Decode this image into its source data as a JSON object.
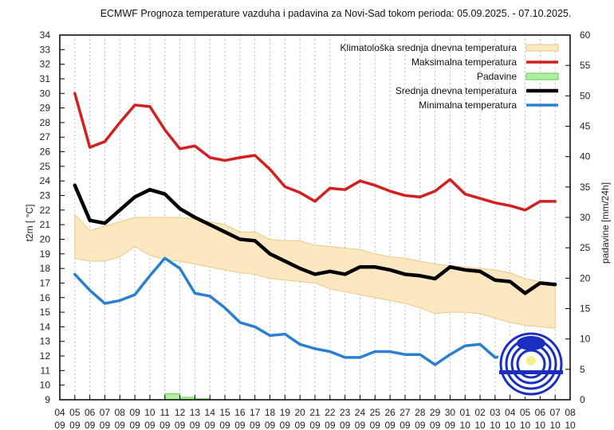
{
  "chart_data": {
    "type": "line",
    "title": "ECMWF Prognoza temperature vazduha i padavina za Novi-Sad tokom perioda: 05.09.2025. - 07.10.2025.",
    "ylabel": "t2m [ °C]",
    "y2label": "padavine [mm/24h]",
    "xlabel": "",
    "ylim": [
      9,
      34
    ],
    "y2lim": [
      0,
      60
    ],
    "y_ticks": [
      9,
      10,
      11,
      12,
      13,
      14,
      15,
      16,
      17,
      18,
      19,
      20,
      21,
      22,
      23,
      24,
      25,
      26,
      27,
      28,
      29,
      30,
      31,
      32,
      33,
      34
    ],
    "y2_ticks": [
      0,
      5,
      10,
      15,
      20,
      25,
      30,
      35,
      40,
      45,
      50,
      55,
      60
    ],
    "grid": "vertical dotted",
    "legend_position": "top-right",
    "x_ticks": [
      {
        "day": "04",
        "month": "09"
      },
      {
        "day": "05",
        "month": "09"
      },
      {
        "day": "06",
        "month": "09"
      },
      {
        "day": "07",
        "month": "09"
      },
      {
        "day": "08",
        "month": "09"
      },
      {
        "day": "09",
        "month": "09"
      },
      {
        "day": "10",
        "month": "09"
      },
      {
        "day": "11",
        "month": "09"
      },
      {
        "day": "12",
        "month": "09"
      },
      {
        "day": "13",
        "month": "09"
      },
      {
        "day": "14",
        "month": "09"
      },
      {
        "day": "15",
        "month": "09"
      },
      {
        "day": "16",
        "month": "09"
      },
      {
        "day": "17",
        "month": "09"
      },
      {
        "day": "18",
        "month": "09"
      },
      {
        "day": "19",
        "month": "09"
      },
      {
        "day": "20",
        "month": "09"
      },
      {
        "day": "21",
        "month": "09"
      },
      {
        "day": "22",
        "month": "09"
      },
      {
        "day": "23",
        "month": "09"
      },
      {
        "day": "24",
        "month": "09"
      },
      {
        "day": "25",
        "month": "09"
      },
      {
        "day": "26",
        "month": "09"
      },
      {
        "day": "27",
        "month": "09"
      },
      {
        "day": "28",
        "month": "09"
      },
      {
        "day": "29",
        "month": "09"
      },
      {
        "day": "30",
        "month": "09"
      },
      {
        "day": "01",
        "month": "10"
      },
      {
        "day": "02",
        "month": "10"
      },
      {
        "day": "03",
        "month": "10"
      },
      {
        "day": "04",
        "month": "10"
      },
      {
        "day": "05",
        "month": "10"
      },
      {
        "day": "06",
        "month": "10"
      },
      {
        "day": "07",
        "month": "10"
      },
      {
        "day": "08",
        "month": "10"
      }
    ],
    "x": [
      "05.09",
      "06.09",
      "07.09",
      "08.09",
      "09.09",
      "10.09",
      "11.09",
      "12.09",
      "13.09",
      "14.09",
      "15.09",
      "16.09",
      "17.09",
      "18.09",
      "19.09",
      "20.09",
      "21.09",
      "22.09",
      "23.09",
      "24.09",
      "25.09",
      "26.09",
      "27.09",
      "28.09",
      "29.09",
      "30.09",
      "01.10",
      "02.10",
      "03.10",
      "04.10",
      "05.10",
      "06.10",
      "07.10"
    ],
    "series": [
      {
        "name": "Klimatološka srednja dnevna temperatura",
        "kind": "band",
        "color": "#fbe7c0",
        "edge": "#e8c98a",
        "upper": [
          21.7,
          20.6,
          20.9,
          21.2,
          21.5,
          21.5,
          21.5,
          21.5,
          21.4,
          21.2,
          21.0,
          20.5,
          20.5,
          20.0,
          19.9,
          19.9,
          19.6,
          19.5,
          19.4,
          19.3,
          19.0,
          18.8,
          18.7,
          18.5,
          18.3,
          18.2,
          18.1,
          18.0,
          17.9,
          17.7,
          17.3,
          17.1,
          17.0
        ],
        "lower": [
          18.7,
          18.5,
          18.5,
          18.8,
          19.5,
          18.9,
          18.6,
          18.5,
          18.3,
          18.1,
          17.9,
          17.7,
          17.6,
          17.3,
          17.2,
          17.1,
          17.0,
          16.6,
          16.4,
          16.2,
          16.0,
          15.8,
          15.6,
          15.3,
          14.9,
          15.0,
          15.0,
          14.9,
          14.6,
          14.3,
          14.1,
          14.0,
          13.9
        ]
      },
      {
        "name": "Maksimalna temperatura",
        "kind": "line",
        "color": "#d22020",
        "values": [
          30.0,
          26.3,
          26.7,
          28.0,
          29.2,
          29.1,
          27.5,
          26.2,
          26.4,
          25.6,
          25.4,
          25.6,
          25.75,
          24.8,
          23.6,
          23.2,
          22.6,
          23.5,
          23.4,
          24.0,
          23.7,
          23.3,
          23.0,
          22.9,
          23.3,
          24.1,
          23.1,
          22.8,
          22.5,
          22.3,
          22.0,
          22.6,
          22.6
        ]
      },
      {
        "name": "Padavine",
        "kind": "bar",
        "axis": "y2",
        "color": "#aef0a0",
        "edge": "#5fcf55",
        "values": [
          0,
          0,
          0,
          0,
          0,
          0,
          1.0,
          0.4,
          0.15,
          0,
          0,
          0,
          0,
          0,
          0,
          0,
          0,
          0,
          0,
          0,
          0,
          0,
          0,
          0,
          0,
          0,
          0,
          0,
          0,
          0,
          0,
          0,
          0
        ]
      },
      {
        "name": "Srednja dnevna temperatura",
        "kind": "line",
        "color": "#000000",
        "values": [
          23.7,
          21.3,
          21.1,
          22.0,
          22.9,
          23.4,
          23.1,
          22.1,
          21.5,
          21.0,
          20.5,
          20.0,
          19.9,
          19.0,
          18.5,
          18.0,
          17.6,
          17.8,
          17.6,
          18.1,
          18.1,
          17.9,
          17.6,
          17.5,
          17.3,
          18.1,
          17.9,
          17.8,
          17.2,
          17.1,
          16.3,
          17.0,
          16.9
        ]
      },
      {
        "name": "Minimalna temperatura",
        "kind": "line",
        "color": "#2b7fd0",
        "values": [
          17.6,
          16.5,
          15.6,
          15.8,
          16.2,
          17.5,
          18.7,
          18.0,
          16.3,
          16.1,
          15.3,
          14.3,
          14.0,
          13.4,
          13.5,
          12.8,
          12.5,
          12.3,
          11.9,
          11.9,
          12.3,
          12.3,
          12.1,
          12.1,
          11.4,
          12.1,
          12.7,
          12.8,
          11.9,
          12.0,
          10.9,
          11.2,
          11.3
        ]
      }
    ],
    "legend": [
      {
        "label": "Klimatološka srednja dnevna temperatura",
        "swatch": "band"
      },
      {
        "label": "Maksimalna temperatura",
        "swatch": "line"
      },
      {
        "label": "Padavine",
        "swatch": "bar"
      },
      {
        "label": "Srednja dnevna temperatura",
        "swatch": "line"
      },
      {
        "label": "Minimalna temperatura",
        "swatch": "line"
      }
    ],
    "annotations": [
      {
        "type": "logo",
        "description": "Republic Hydrometeorological Service logo",
        "icon": "rhmz-logo-icon"
      }
    ]
  }
}
